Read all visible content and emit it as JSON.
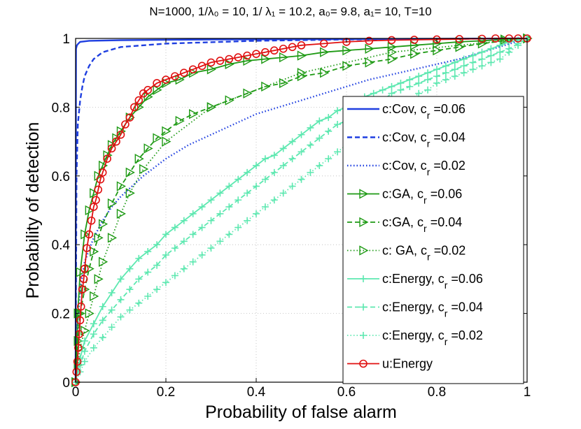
{
  "chart_data": {
    "type": "line",
    "title": "N=1000,  1/λ₀ = 10, 1/ λ₁ = 10.2, a₀= 9.8, a₁= 10, T=10",
    "xlabel": "Probability of false alarm",
    "ylabel": "Probability of detection",
    "xlim": [
      0,
      1
    ],
    "ylim": [
      0,
      1
    ],
    "xticks": [
      0,
      0.2,
      0.4,
      0.6,
      0.8,
      1
    ],
    "yticks": [
      0,
      0.2,
      0.4,
      0.6,
      0.8,
      1
    ],
    "xtick_labels": [
      "0",
      "0.2",
      "0.4",
      "0.6",
      "0.8",
      "1"
    ],
    "ytick_labels": [
      "0",
      "0.2",
      "0.4",
      "0.6",
      "0.8",
      "1"
    ],
    "grid": true,
    "legend_position": "right",
    "series": [
      {
        "name": "c:Cov, c_r =0.06",
        "label_main": "c:Cov, c",
        "label_sub": "r",
        "label_tail": " =0.06",
        "color": "#1f3fe0",
        "dash": "solid",
        "marker": "none",
        "x": [
          0,
          0.001,
          0.003,
          0.006,
          0.01,
          0.03,
          0.1,
          0.3,
          0.6,
          1.0
        ],
        "y": [
          0,
          0.97,
          0.98,
          0.985,
          0.99,
          0.993,
          0.995,
          0.997,
          0.998,
          1.0
        ]
      },
      {
        "name": "c:Cov, c_r =0.04",
        "label_main": "c:Cov, c",
        "label_sub": "r",
        "label_tail": " =0.04",
        "color": "#1f3fe0",
        "dash": "dashed",
        "marker": "none",
        "x": [
          0,
          0.002,
          0.005,
          0.01,
          0.015,
          0.02,
          0.03,
          0.04,
          0.06,
          0.1,
          0.2,
          0.4,
          0.6,
          1.0
        ],
        "y": [
          0,
          0.6,
          0.75,
          0.82,
          0.86,
          0.89,
          0.92,
          0.94,
          0.96,
          0.975,
          0.985,
          0.993,
          0.997,
          1.0
        ]
      },
      {
        "name": "c:Cov, c_r =0.02",
        "label_main": "c:Cov, c",
        "label_sub": "r",
        "label_tail": " =0.02",
        "color": "#1f3fe0",
        "dash": "dotted",
        "marker": "none",
        "x": [
          0,
          0.005,
          0.01,
          0.02,
          0.04,
          0.06,
          0.08,
          0.1,
          0.15,
          0.2,
          0.25,
          0.3,
          0.35,
          0.4,
          0.45,
          0.5,
          0.55,
          0.6,
          0.65,
          0.7,
          0.75,
          0.8,
          0.85,
          0.9,
          0.95,
          1.0
        ],
        "y": [
          0,
          0.18,
          0.27,
          0.35,
          0.42,
          0.47,
          0.51,
          0.54,
          0.6,
          0.65,
          0.69,
          0.72,
          0.75,
          0.78,
          0.8,
          0.82,
          0.84,
          0.86,
          0.88,
          0.895,
          0.91,
          0.925,
          0.94,
          0.96,
          0.98,
          1.0
        ]
      },
      {
        "name": "c:GA,  c_r =0.06",
        "label_main": "c:GA,  c",
        "label_sub": "r",
        "label_tail": " =0.06",
        "color": "#1e9a14",
        "dash": "solid",
        "marker": "triangle",
        "x": [
          0,
          0.005,
          0.01,
          0.02,
          0.03,
          0.04,
          0.05,
          0.06,
          0.07,
          0.08,
          0.09,
          0.1,
          0.12,
          0.14,
          0.16,
          0.18,
          0.2,
          0.23,
          0.26,
          0.3,
          0.34,
          0.38,
          0.42,
          0.46,
          0.5,
          0.55,
          0.6,
          0.65,
          0.7,
          0.75,
          0.8,
          0.85,
          0.9,
          0.95,
          1.0
        ],
        "y": [
          0,
          0.2,
          0.32,
          0.43,
          0.5,
          0.55,
          0.6,
          0.63,
          0.66,
          0.69,
          0.71,
          0.73,
          0.77,
          0.8,
          0.83,
          0.85,
          0.87,
          0.88,
          0.9,
          0.91,
          0.925,
          0.935,
          0.94,
          0.945,
          0.95,
          0.96,
          0.965,
          0.97,
          0.975,
          0.98,
          0.985,
          0.99,
          0.993,
          0.997,
          1.0
        ]
      },
      {
        "name": "c:GA, c_r =0.04",
        "label_main": "c:GA, c",
        "label_sub": "r",
        "label_tail": " =0.04",
        "color": "#1e9a14",
        "dash": "dashed",
        "marker": "triangle",
        "x": [
          0,
          0.005,
          0.01,
          0.02,
          0.03,
          0.04,
          0.05,
          0.06,
          0.08,
          0.1,
          0.12,
          0.14,
          0.16,
          0.18,
          0.2,
          0.23,
          0.26,
          0.3,
          0.34,
          0.38,
          0.42,
          0.46,
          0.5,
          0.55,
          0.6,
          0.65,
          0.7,
          0.75,
          0.8,
          0.85,
          0.9,
          0.95,
          1.0
        ],
        "y": [
          0,
          0.12,
          0.2,
          0.27,
          0.33,
          0.38,
          0.42,
          0.46,
          0.52,
          0.57,
          0.61,
          0.65,
          0.68,
          0.71,
          0.73,
          0.76,
          0.78,
          0.8,
          0.82,
          0.84,
          0.86,
          0.87,
          0.89,
          0.9,
          0.92,
          0.93,
          0.94,
          0.955,
          0.965,
          0.975,
          0.985,
          0.993,
          1.0
        ]
      },
      {
        "name": "c: GA, c_r =0.02",
        "label_main": "c: GA, c",
        "label_sub": "r",
        "label_tail": " =0.02",
        "color": "#1e9a14",
        "dash": "dotted",
        "marker": "triangle",
        "x": [
          0,
          0.005,
          0.01,
          0.02,
          0.03,
          0.04,
          0.05,
          0.06,
          0.08,
          0.1,
          0.12,
          0.15,
          0.2,
          0.3,
          0.5,
          0.7,
          1.0
        ],
        "y": [
          0,
          0.05,
          0.1,
          0.15,
          0.2,
          0.25,
          0.3,
          0.35,
          0.42,
          0.49,
          0.55,
          0.62,
          0.7,
          0.8,
          0.9,
          0.96,
          1.0
        ]
      },
      {
        "name": "c:Energy, c_r =0.06",
        "label_main": "c:Energy, c",
        "label_sub": "r",
        "label_tail": " =0.06",
        "color": "#5de8b0",
        "dash": "solid",
        "marker": "plus",
        "x": [
          0,
          0.01,
          0.02,
          0.04,
          0.06,
          0.08,
          0.1,
          0.12,
          0.14,
          0.16,
          0.18,
          0.2,
          0.22,
          0.24,
          0.26,
          0.28,
          0.3,
          0.32,
          0.34,
          0.36,
          0.38,
          0.4,
          0.42,
          0.44,
          0.46,
          0.48,
          0.5,
          0.52,
          0.54,
          0.56,
          0.58,
          0.6,
          0.62,
          0.64,
          0.66,
          0.68,
          0.7,
          0.72,
          0.74,
          0.76,
          0.78,
          0.8,
          0.82,
          0.84,
          0.86,
          0.88,
          0.9,
          0.92,
          0.94,
          0.96,
          0.98,
          1.0
        ],
        "y": [
          0,
          0.07,
          0.12,
          0.17,
          0.22,
          0.26,
          0.3,
          0.33,
          0.36,
          0.38,
          0.4,
          0.43,
          0.45,
          0.47,
          0.49,
          0.51,
          0.53,
          0.55,
          0.57,
          0.59,
          0.61,
          0.63,
          0.65,
          0.66,
          0.68,
          0.7,
          0.72,
          0.74,
          0.76,
          0.77,
          0.79,
          0.8,
          0.81,
          0.83,
          0.84,
          0.85,
          0.86,
          0.87,
          0.88,
          0.89,
          0.9,
          0.91,
          0.92,
          0.93,
          0.94,
          0.95,
          0.96,
          0.97,
          0.98,
          0.99,
          0.995,
          1.0
        ]
      },
      {
        "name": "c:Energy, c_r =0.04",
        "label_main": "c:Energy, c",
        "label_sub": "r",
        "label_tail": " =0.04",
        "color": "#5de8b0",
        "dash": "dashed",
        "marker": "plus",
        "x": [
          0,
          0.01,
          0.02,
          0.04,
          0.06,
          0.08,
          0.1,
          0.12,
          0.14,
          0.16,
          0.18,
          0.2,
          0.22,
          0.24,
          0.26,
          0.28,
          0.3,
          0.32,
          0.34,
          0.36,
          0.38,
          0.4,
          0.42,
          0.44,
          0.46,
          0.48,
          0.5,
          0.52,
          0.54,
          0.56,
          0.58,
          0.6,
          0.62,
          0.64,
          0.66,
          0.68,
          0.7,
          0.72,
          0.74,
          0.76,
          0.78,
          0.8,
          0.82,
          0.84,
          0.86,
          0.88,
          0.9,
          0.92,
          0.94,
          0.96,
          0.98,
          1.0
        ],
        "y": [
          0,
          0.05,
          0.09,
          0.14,
          0.18,
          0.21,
          0.24,
          0.27,
          0.3,
          0.32,
          0.34,
          0.37,
          0.39,
          0.41,
          0.43,
          0.45,
          0.47,
          0.49,
          0.51,
          0.53,
          0.55,
          0.57,
          0.59,
          0.61,
          0.63,
          0.65,
          0.67,
          0.69,
          0.71,
          0.73,
          0.75,
          0.76,
          0.78,
          0.79,
          0.81,
          0.82,
          0.84,
          0.85,
          0.86,
          0.87,
          0.88,
          0.89,
          0.9,
          0.91,
          0.92,
          0.93,
          0.94,
          0.95,
          0.96,
          0.97,
          0.985,
          1.0
        ]
      },
      {
        "name": "c:Energy, c_r =0.02",
        "label_main": "c:Energy, c",
        "label_sub": "r",
        "label_tail": " =0.02",
        "color": "#5de8b0",
        "dash": "dotted",
        "marker": "plus",
        "x": [
          0,
          0.01,
          0.02,
          0.04,
          0.06,
          0.08,
          0.1,
          0.12,
          0.14,
          0.16,
          0.18,
          0.2,
          0.22,
          0.24,
          0.26,
          0.28,
          0.3,
          0.32,
          0.34,
          0.36,
          0.38,
          0.4,
          0.42,
          0.44,
          0.46,
          0.48,
          0.5,
          0.52,
          0.54,
          0.56,
          0.58,
          0.6,
          0.62,
          0.64,
          0.66,
          0.68,
          0.7,
          0.72,
          0.74,
          0.76,
          0.78,
          0.8,
          0.82,
          0.84,
          0.86,
          0.88,
          0.9,
          0.92,
          0.94,
          0.96,
          0.98,
          1.0
        ],
        "y": [
          0,
          0.03,
          0.06,
          0.1,
          0.13,
          0.16,
          0.19,
          0.21,
          0.23,
          0.25,
          0.27,
          0.29,
          0.31,
          0.33,
          0.35,
          0.37,
          0.39,
          0.41,
          0.43,
          0.45,
          0.47,
          0.49,
          0.51,
          0.53,
          0.55,
          0.57,
          0.59,
          0.61,
          0.63,
          0.65,
          0.67,
          0.69,
          0.71,
          0.73,
          0.74,
          0.76,
          0.78,
          0.8,
          0.82,
          0.84,
          0.85,
          0.87,
          0.88,
          0.89,
          0.9,
          0.91,
          0.92,
          0.93,
          0.94,
          0.96,
          0.98,
          1.0
        ]
      },
      {
        "name": "u:Energy",
        "label_main": "u:Energy",
        "label_sub": "",
        "label_tail": "",
        "color": "#e01010",
        "dash": "solid",
        "marker": "circle",
        "x": [
          0,
          0.002,
          0.004,
          0.006,
          0.008,
          0.01,
          0.012,
          0.015,
          0.018,
          0.02,
          0.025,
          0.03,
          0.035,
          0.04,
          0.045,
          0.05,
          0.055,
          0.06,
          0.07,
          0.08,
          0.09,
          0.1,
          0.11,
          0.12,
          0.13,
          0.14,
          0.15,
          0.16,
          0.18,
          0.2,
          0.22,
          0.24,
          0.26,
          0.28,
          0.3,
          0.32,
          0.34,
          0.36,
          0.38,
          0.4,
          0.42,
          0.44,
          0.46,
          0.48,
          0.5,
          0.55,
          0.6,
          0.65,
          0.7,
          0.75,
          0.8,
          0.85,
          0.9,
          0.93,
          0.96,
          0.98,
          1.0
        ],
        "y": [
          0,
          0.03,
          0.06,
          0.1,
          0.14,
          0.18,
          0.22,
          0.27,
          0.3,
          0.33,
          0.39,
          0.43,
          0.47,
          0.51,
          0.53,
          0.56,
          0.59,
          0.61,
          0.65,
          0.68,
          0.7,
          0.72,
          0.75,
          0.77,
          0.8,
          0.82,
          0.84,
          0.85,
          0.87,
          0.88,
          0.89,
          0.9,
          0.91,
          0.92,
          0.93,
          0.935,
          0.94,
          0.945,
          0.95,
          0.955,
          0.96,
          0.965,
          0.97,
          0.975,
          0.98,
          0.985,
          0.99,
          0.993,
          0.995,
          0.996,
          0.997,
          0.998,
          0.999,
          1.0,
          1.0,
          1.0,
          1.0
        ]
      }
    ]
  }
}
